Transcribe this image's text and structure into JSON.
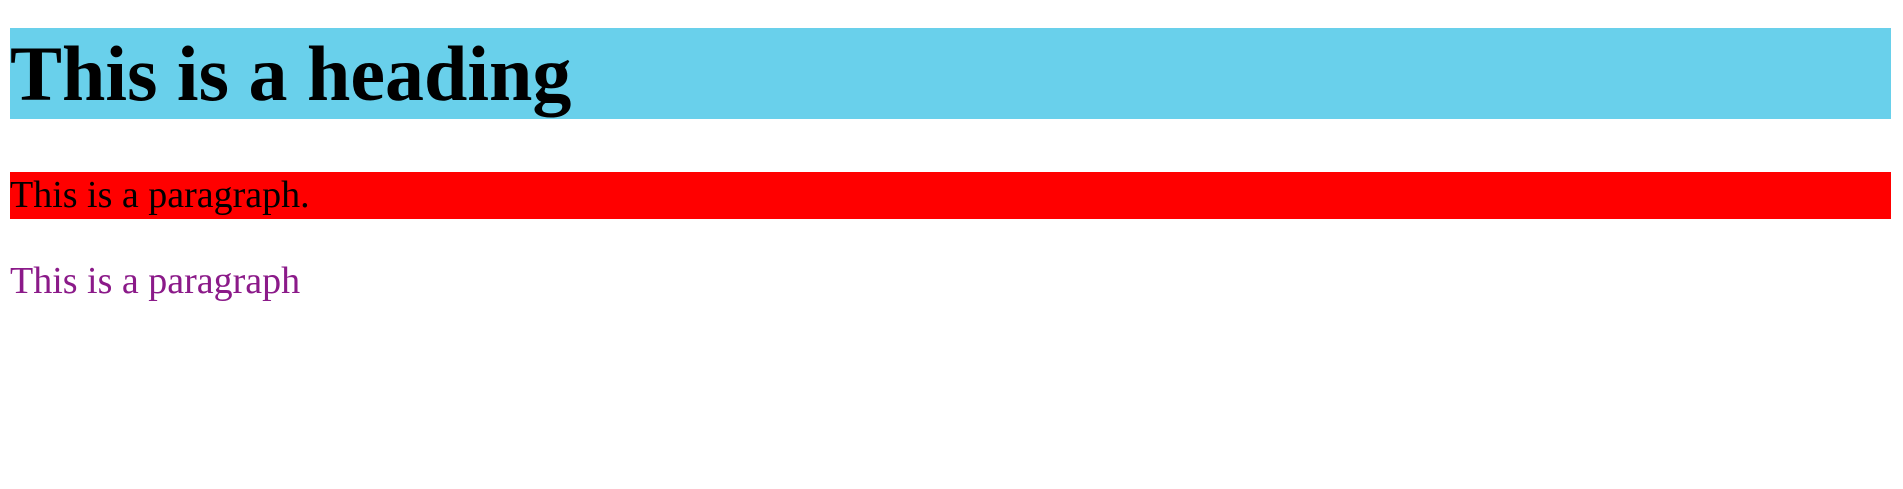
{
  "content": {
    "heading": "This is a heading",
    "paragraph_red": "This is a paragraph.",
    "paragraph_purple": "This is a paragraph"
  },
  "colors": {
    "heading_background": "#69d0eb",
    "paragraph_red_background": "#ff0000",
    "paragraph_purple_text": "#8b1a89"
  }
}
